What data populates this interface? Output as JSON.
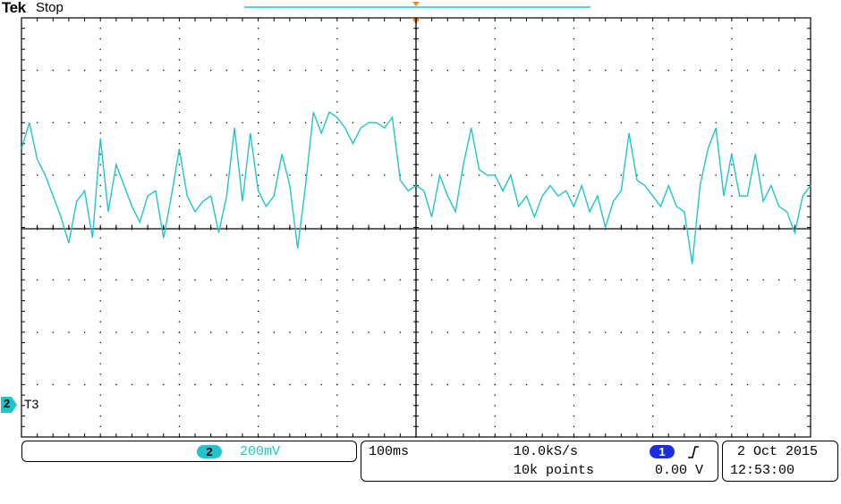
{
  "header": {
    "brand": "Tek",
    "state": "Stop"
  },
  "ref_marker": {
    "channel": "2",
    "label": "T3"
  },
  "status": {
    "channel_badge": "2",
    "scale": "200mV",
    "timebase": "100ms",
    "sample_rate": "10.0kS/s",
    "record_length": "10k points",
    "trigger_source": "1",
    "trigger_slope_icon": "rising-edge-icon",
    "trigger_level": "0.00 V",
    "date": "2 Oct  2015",
    "time": "12:53:00"
  },
  "colors": {
    "trace": "#22c4cc",
    "trigger_marker": "#f08a1c",
    "grid": "#000000",
    "ch1": "#1a2ee0"
  },
  "chart_data": {
    "type": "line",
    "title": "",
    "xlabel": "",
    "ylabel": "",
    "grid": true,
    "x_divisions": 10,
    "y_divisions": 8,
    "x_unit_per_div": "100ms",
    "y_unit_per_div": "200mV",
    "xlim_div": [
      0,
      10
    ],
    "ylim_div": [
      -4,
      4
    ],
    "series": [
      {
        "channel": "2",
        "x_div": [
          0.0,
          0.1,
          0.2,
          0.3,
          0.4,
          0.5,
          0.6,
          0.7,
          0.8,
          0.9,
          1.0,
          1.1,
          1.2,
          1.3,
          1.4,
          1.5,
          1.6,
          1.7,
          1.8,
          1.9,
          2.0,
          2.1,
          2.2,
          2.3,
          2.4,
          2.5,
          2.6,
          2.7,
          2.8,
          2.9,
          3.0,
          3.1,
          3.2,
          3.3,
          3.4,
          3.5,
          3.6,
          3.7,
          3.8,
          3.9,
          4.0,
          4.1,
          4.2,
          4.3,
          4.4,
          4.5,
          4.6,
          4.7,
          4.8,
          4.9,
          5.0,
          5.1,
          5.2,
          5.3,
          5.4,
          5.5,
          5.6,
          5.7,
          5.8,
          5.9,
          6.0,
          6.1,
          6.2,
          6.3,
          6.4,
          6.5,
          6.6,
          6.7,
          6.8,
          6.9,
          7.0,
          7.1,
          7.2,
          7.3,
          7.4,
          7.5,
          7.6,
          7.7,
          7.8,
          7.9,
          8.0,
          8.1,
          8.2,
          8.3,
          8.4,
          8.5,
          8.6,
          8.7,
          8.8,
          8.9,
          9.0,
          9.1,
          9.2,
          9.3,
          9.4,
          9.5,
          9.6,
          9.7,
          9.8,
          9.9,
          10.0
        ],
        "y_div": [
          1.5,
          2.0,
          1.3,
          1.0,
          0.6,
          0.2,
          -0.3,
          0.5,
          0.7,
          -0.2,
          1.7,
          0.3,
          1.2,
          0.8,
          0.4,
          0.1,
          0.6,
          0.7,
          -0.2,
          0.6,
          1.5,
          0.6,
          0.3,
          0.5,
          0.6,
          -0.1,
          0.6,
          1.9,
          0.5,
          1.8,
          0.7,
          0.4,
          0.6,
          1.4,
          0.8,
          -0.4,
          0.8,
          2.2,
          1.8,
          2.2,
          2.1,
          1.9,
          1.6,
          1.9,
          2.0,
          2.0,
          1.9,
          2.1,
          0.9,
          0.7,
          0.8,
          0.7,
          0.2,
          1.0,
          0.6,
          0.3,
          1.2,
          1.9,
          1.1,
          1.0,
          1.0,
          0.7,
          1.0,
          0.4,
          0.6,
          0.2,
          0.6,
          0.8,
          0.6,
          0.7,
          0.4,
          0.8,
          0.3,
          0.6,
          0.0,
          0.5,
          0.7,
          1.8,
          0.9,
          0.8,
          0.6,
          0.4,
          0.8,
          0.4,
          0.3,
          -0.7,
          0.8,
          1.5,
          1.9,
          0.6,
          1.4,
          0.6,
          0.6,
          1.4,
          0.5,
          0.8,
          0.4,
          0.3,
          -0.1,
          0.6,
          0.8
        ]
      }
    ]
  }
}
